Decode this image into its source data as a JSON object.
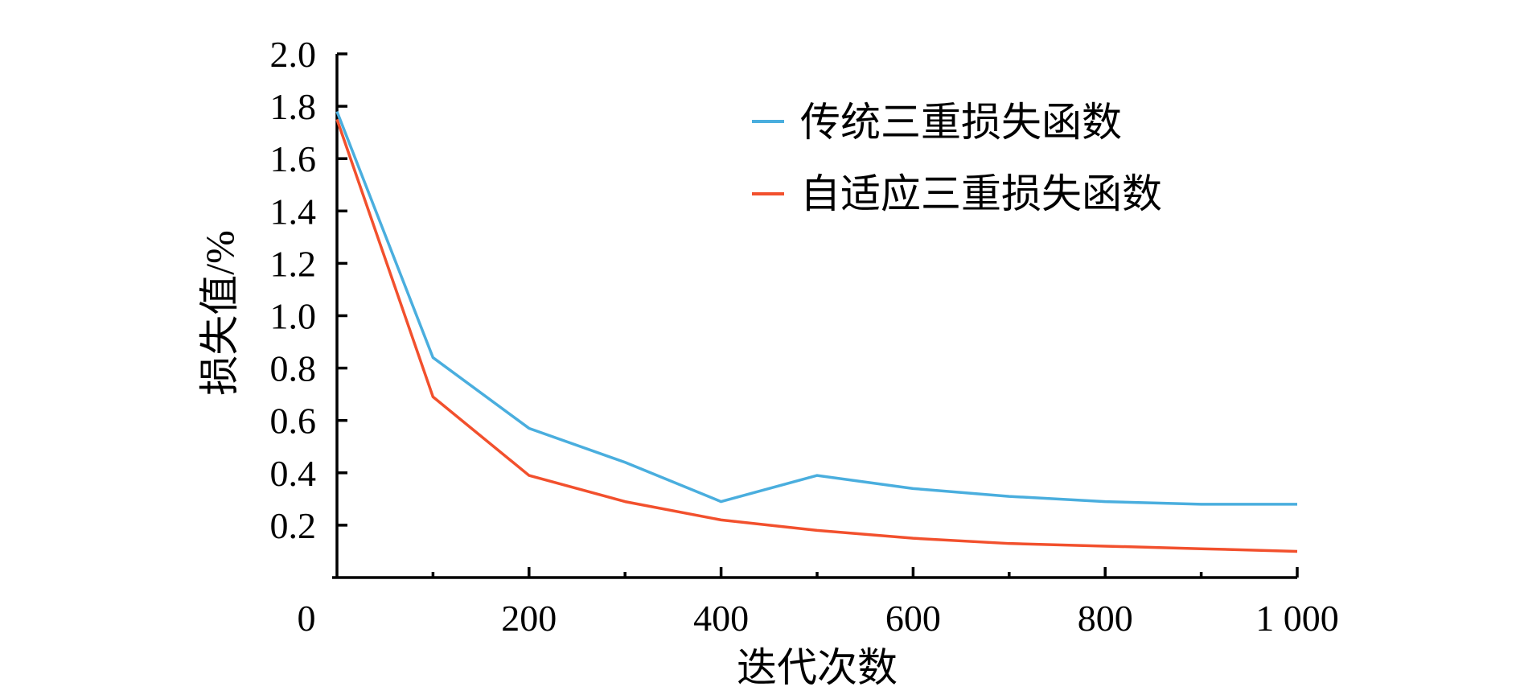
{
  "chart_data": {
    "type": "line",
    "title": "",
    "xlabel": "迭代次数",
    "ylabel": "损失值/%",
    "xlim": [
      0,
      1000
    ],
    "ylim": [
      0,
      2.0
    ],
    "x_ticks": [
      0,
      200,
      400,
      600,
      800,
      1000
    ],
    "x_tick_labels": [
      "0",
      "200",
      "400",
      "600",
      "800",
      "1 000"
    ],
    "y_ticks": [
      0.2,
      0.4,
      0.6,
      0.8,
      1.0,
      1.2,
      1.4,
      1.6,
      1.8,
      2.0
    ],
    "y_tick_labels": [
      "0.2",
      "0.4",
      "0.6",
      "0.8",
      "1.0",
      "1.2",
      "1.4",
      "1.6",
      "1.8",
      "2.0"
    ],
    "grid": false,
    "legend_position": "top-right",
    "x": [
      0,
      100,
      200,
      300,
      400,
      500,
      600,
      700,
      800,
      900,
      1000
    ],
    "series": [
      {
        "name": "传统三重损失函数",
        "color": "#4aaede",
        "values": [
          1.78,
          0.84,
          0.57,
          0.44,
          0.29,
          0.39,
          0.34,
          0.31,
          0.29,
          0.28,
          0.28
        ]
      },
      {
        "name": "自适应三重损失函数",
        "color": "#f2502d",
        "values": [
          1.75,
          0.69,
          0.39,
          0.29,
          0.22,
          0.18,
          0.15,
          0.13,
          0.12,
          0.11,
          0.1
        ]
      }
    ]
  }
}
